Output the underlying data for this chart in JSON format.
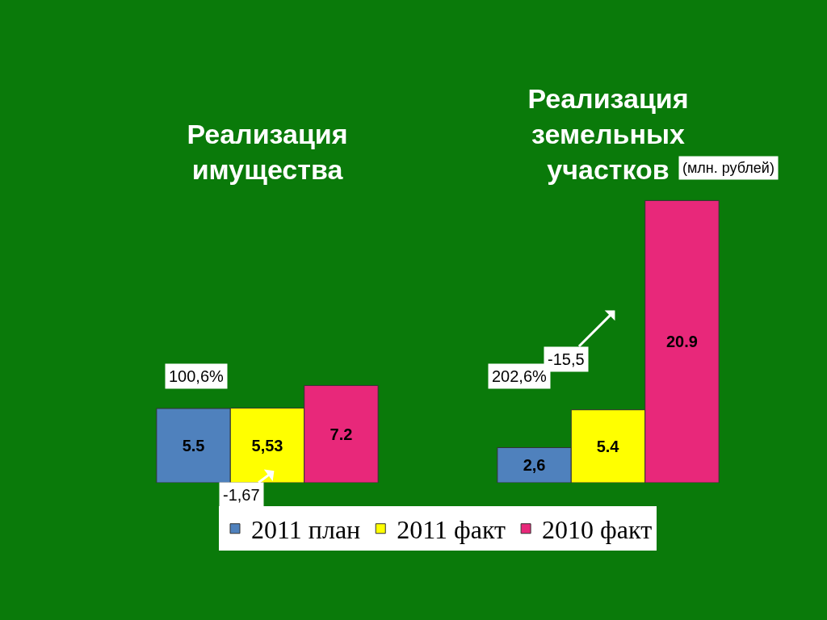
{
  "chart_data": {
    "type": "bar",
    "categories": [
      "Реализация имущества",
      "Реализация земельных участков"
    ],
    "series": [
      {
        "name": "2011 план",
        "color": "#4f81bd",
        "values": [
          5.5,
          2.6
        ],
        "value_labels": [
          "5.5",
          "2,6"
        ]
      },
      {
        "name": "2011 факт",
        "color": "#ffff00",
        "values": [
          5.53,
          5.4
        ],
        "value_labels": [
          "5,53",
          "5.4"
        ]
      },
      {
        "name": "2010 факт",
        "color": "#e8287a",
        "values": [
          7.2,
          20.9
        ],
        "value_labels": [
          "7.2",
          "20.9"
        ]
      }
    ],
    "annotations": [
      "(млн. рублей)",
      "100,6%",
      "202,6%",
      "-1,67",
      "-15,5"
    ],
    "legend": "bottom",
    "tick_labels": "x"
  }
}
